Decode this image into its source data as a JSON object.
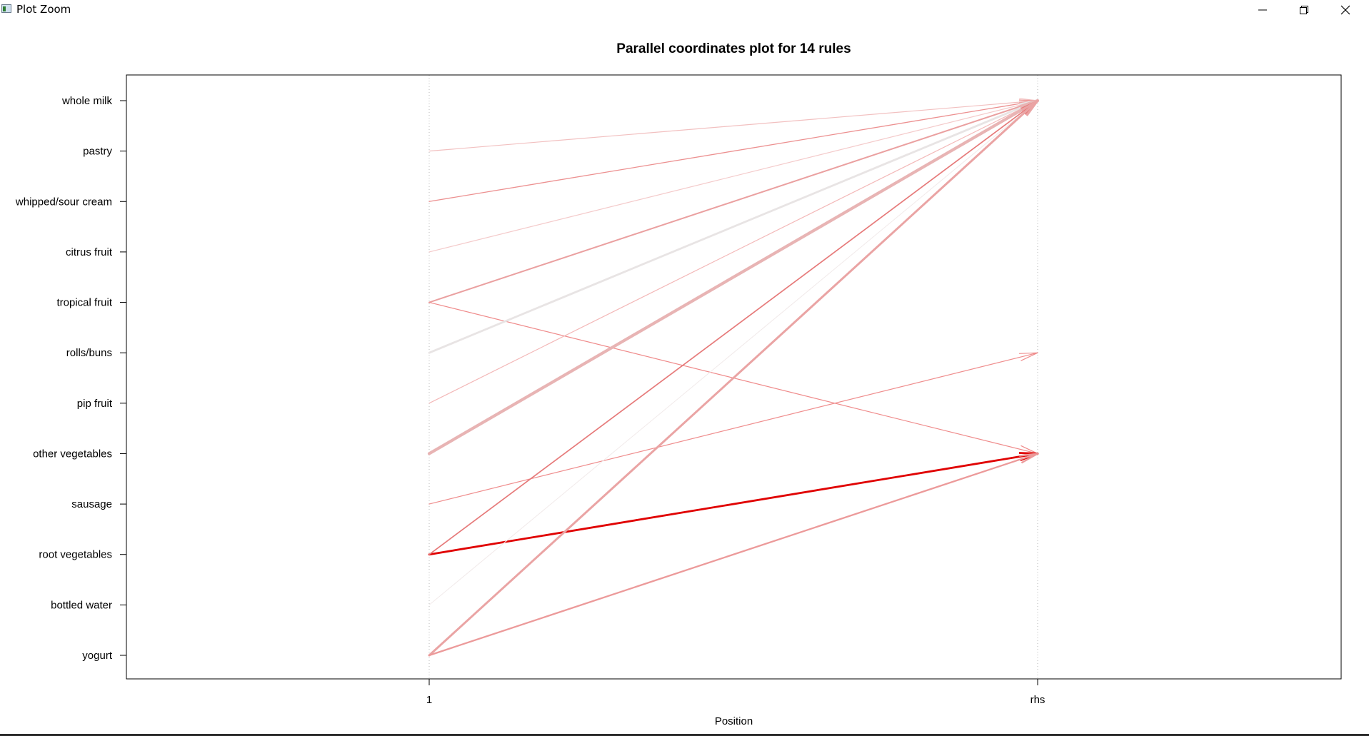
{
  "window": {
    "title": "Plot Zoom",
    "minimize_icon": "minimize-icon",
    "restore_icon": "restore-icon",
    "close_icon": "close-icon"
  },
  "chart_data": {
    "type": "parallel-coordinates",
    "title": "Parallel coordinates plot for 14 rules",
    "xlabel": "Position",
    "x_ticks": [
      "1",
      "rhs"
    ],
    "y_ticks": [
      "whole milk",
      "pastry",
      "whipped/sour cream",
      "citrus fruit",
      "tropical fruit",
      "rolls/buns",
      "pip fruit",
      "other vegetables",
      "sausage",
      "root vegetables",
      "bottled water",
      "yogurt"
    ],
    "grid": "vertical dotted lines at positions",
    "color_scale": "red intensity and line width encode rule measure",
    "rules": [
      {
        "lhs": "pastry",
        "rhs": "whole milk",
        "color": "#f2c0c0",
        "width": 1.2
      },
      {
        "lhs": "whipped/sour cream",
        "rhs": "whole milk",
        "color": "#ec9090",
        "width": 1.3
      },
      {
        "lhs": "citrus fruit",
        "rhs": "whole milk",
        "color": "#f4caca",
        "width": 1.2
      },
      {
        "lhs": "tropical fruit",
        "rhs": "whole milk",
        "color": "#eaa0a0",
        "width": 2.0
      },
      {
        "lhs": "tropical fruit",
        "rhs": "other vegetables",
        "color": "#ef8a8a",
        "width": 1.2
      },
      {
        "lhs": "rolls/buns",
        "rhs": "whole milk",
        "color": "#e8e4e4",
        "width": 2.8
      },
      {
        "lhs": "pip fruit",
        "rhs": "whole milk",
        "color": "#f3b8b8",
        "width": 1.2
      },
      {
        "lhs": "other vegetables",
        "rhs": "whole milk",
        "color": "#e8b4b4",
        "width": 4.2
      },
      {
        "lhs": "sausage",
        "rhs": "rolls/buns",
        "color": "#ef8d8d",
        "width": 1.2
      },
      {
        "lhs": "root vegetables",
        "rhs": "other vegetables",
        "color": "#e00000",
        "width": 2.8
      },
      {
        "lhs": "root vegetables",
        "rhs": "whole milk",
        "color": "#e67a7a",
        "width": 1.7
      },
      {
        "lhs": "bottled water",
        "rhs": "whole milk",
        "color": "#f1eaea",
        "width": 1.0
      },
      {
        "lhs": "yogurt",
        "rhs": "whole milk",
        "color": "#eaa4a4",
        "width": 3.0
      },
      {
        "lhs": "yogurt",
        "rhs": "other vegetables",
        "color": "#ec9a9a",
        "width": 2.3
      }
    ]
  }
}
